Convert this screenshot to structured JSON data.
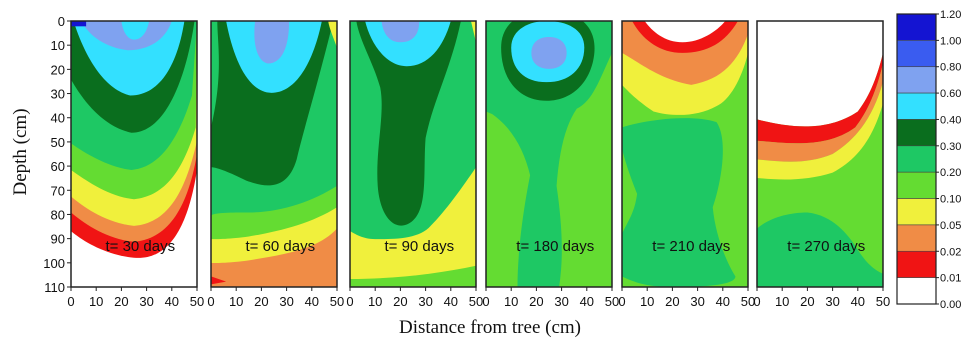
{
  "chart_data": {
    "type": "heatmap",
    "xlabel": "Distance from tree (cm)",
    "ylabel": "Depth (cm)",
    "x_ticks": [
      0,
      10,
      20,
      30,
      40,
      50
    ],
    "y_ticks": [
      0,
      10,
      20,
      30,
      40,
      50,
      60,
      70,
      80,
      90,
      100,
      110
    ],
    "xlim": [
      0,
      50
    ],
    "ylim": [
      0,
      110
    ],
    "colorbar": {
      "levels": [
        "1.20",
        "1.00",
        "0.80",
        "0.60",
        "0.40",
        "0.30",
        "0.20",
        "0.10",
        "0.05",
        "0.02",
        "0.01",
        "0.00"
      ],
      "colors": [
        "#1414d2",
        "#3a5cf0",
        "#7fa2f0",
        "#33e0ff",
        "#0a6e1e",
        "#1ec864",
        "#64dc32",
        "#f0f03c",
        "#f08c46",
        "#f01414",
        "#ffffff"
      ]
    },
    "panels": [
      {
        "label": "t= 30 days"
      },
      {
        "label": "t= 60 days"
      },
      {
        "label": "t= 90 days"
      },
      {
        "label": "t= 180 days"
      },
      {
        "label": "t= 210 days"
      },
      {
        "label": "t= 270 days"
      }
    ]
  }
}
